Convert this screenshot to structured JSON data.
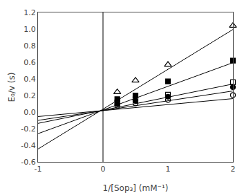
{
  "chart_data": {
    "type": "scatter",
    "xlabel": "1/[Sop₃] (mM⁻¹)",
    "ylabel": "E₀/v (s)",
    "xlim": [
      -1,
      2
    ],
    "ylim": [
      -0.6,
      1.2
    ],
    "xticks": [
      -1,
      0,
      1,
      2
    ],
    "yticks": [
      -0.6,
      -0.4,
      -0.2,
      {
        "value": 0,
        "label": "0.0"
      },
      0.2,
      0.4,
      0.6,
      0.8,
      {
        "value": 1.0,
        "label": "1.0"
      },
      1.2
    ],
    "grid": false,
    "vline": 0,
    "series": [
      {
        "type": "line",
        "color": "#000000",
        "x": [
          -1,
          2
        ],
        "values": [
          -0.445,
          0.995
        ]
      },
      {
        "type": "scatter",
        "marker": "triangle-up-open",
        "color": "#000000",
        "x": [
          0.22,
          0.5,
          1.0,
          2.0
        ],
        "values": [
          0.24,
          0.38,
          0.57,
          1.04
        ]
      },
      {
        "type": "line",
        "color": "#000000",
        "x": [
          -1,
          2
        ],
        "values": [
          -0.26,
          0.595
        ]
      },
      {
        "type": "scatter",
        "marker": "square",
        "color": "#000000",
        "x": [
          0.22,
          0.5,
          1.0,
          2.0
        ],
        "values": [
          0.155,
          0.2,
          0.37,
          0.62
        ]
      },
      {
        "type": "line",
        "color": "#000000",
        "x": [
          -1,
          2
        ],
        "values": [
          -0.136,
          0.338
        ]
      },
      {
        "type": "scatter",
        "marker": "square-open",
        "color": "#000000",
        "x": [
          0.22,
          0.5,
          1.0,
          2.0
        ],
        "values": [
          0.115,
          0.155,
          0.21,
          0.36
        ]
      },
      {
        "type": "line",
        "color": "#000000",
        "x": [
          -1,
          2
        ],
        "values": [
          -0.1,
          0.254
        ]
      },
      {
        "type": "scatter",
        "marker": "circle",
        "color": "#000000",
        "x": [
          0.22,
          0.5,
          1.0,
          2.0
        ],
        "values": [
          0.095,
          0.135,
          0.185,
          0.3
        ]
      },
      {
        "type": "line",
        "color": "#000000",
        "x": [
          -1,
          2
        ],
        "values": [
          -0.054,
          0.162
        ]
      },
      {
        "type": "scatter",
        "marker": "circle-open",
        "color": "#000000",
        "x": [
          0.22,
          0.5,
          1.0,
          2.0
        ],
        "values": [
          0.075,
          0.105,
          0.145,
          0.205
        ]
      }
    ]
  }
}
